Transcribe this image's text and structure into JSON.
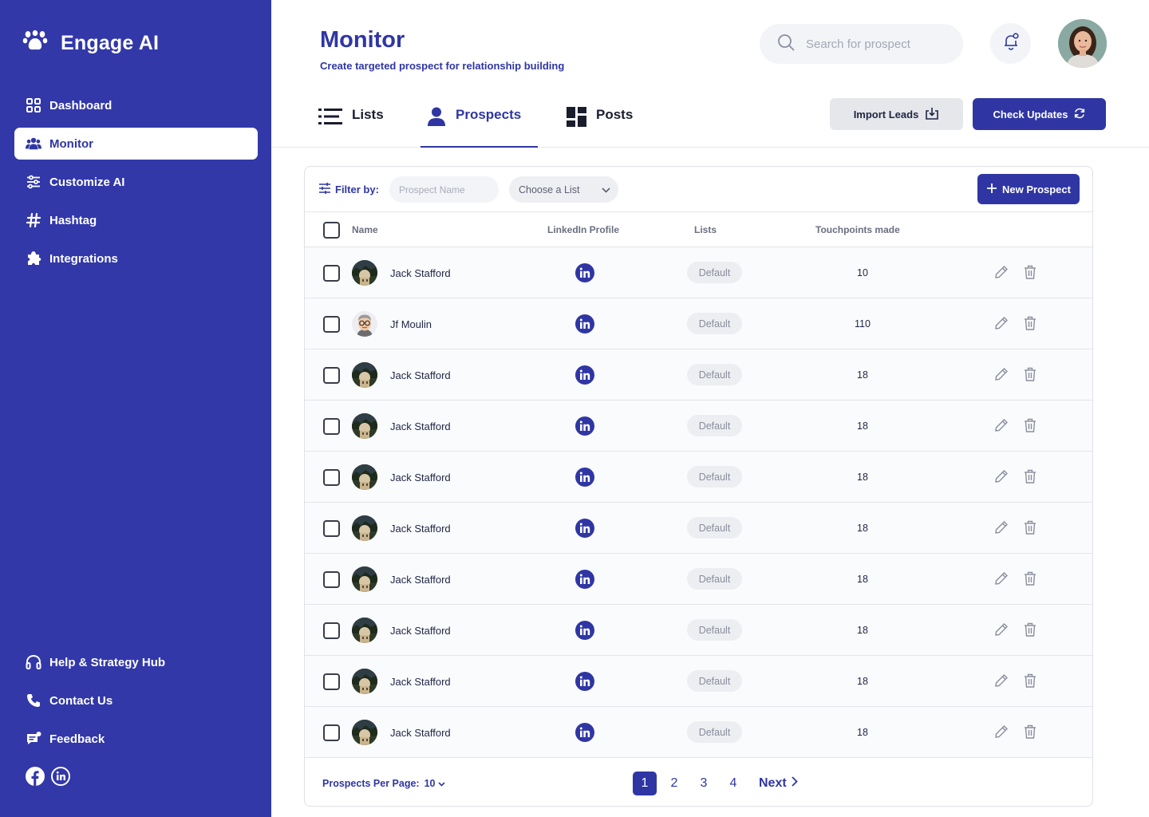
{
  "app": {
    "name": "Engage AI"
  },
  "sidebar": {
    "items": [
      {
        "label": "Dashboard",
        "icon": "grid-icon"
      },
      {
        "label": "Monitor",
        "icon": "users-icon",
        "active": true
      },
      {
        "label": "Customize AI",
        "icon": "sliders-icon"
      },
      {
        "label": "Hashtag",
        "icon": "hashtag-icon"
      },
      {
        "label": "Integrations",
        "icon": "puzzle-icon"
      }
    ],
    "bottom_items": [
      {
        "label": "Help & Strategy Hub",
        "icon": "headphones-icon"
      },
      {
        "label": "Contact Us",
        "icon": "phone-icon"
      },
      {
        "label": "Feedback",
        "icon": "feedback-icon"
      }
    ],
    "socials": [
      "facebook-icon",
      "linkedin-icon"
    ]
  },
  "header": {
    "title": "Monitor",
    "subtitle": "Create targeted prospect for relationship building",
    "search_placeholder": "Search for prospect"
  },
  "tabs": [
    {
      "label": "Lists",
      "icon": "list-icon"
    },
    {
      "label": "Prospects",
      "icon": "person-icon",
      "active": true
    },
    {
      "label": "Posts",
      "icon": "dashboard-icon"
    }
  ],
  "actions": {
    "import_label": "Import Leads",
    "check_label": "Check Updates"
  },
  "filter": {
    "label": "Filter by:",
    "name_placeholder": "Prospect Name",
    "list_placeholder": "Choose a List",
    "new_label": "New Prospect"
  },
  "table": {
    "columns": {
      "name": "Name",
      "linkedin": "LinkedIn Profile",
      "lists": "Lists",
      "touchpoints": "Touchpoints made"
    },
    "rows": [
      {
        "name": "Jack Stafford",
        "list": "Default",
        "touchpoints": "10",
        "avatar": "photo"
      },
      {
        "name": "Jf Moulin",
        "list": "Default",
        "touchpoints": "110",
        "avatar": "cartoon"
      },
      {
        "name": "Jack Stafford",
        "list": "Default",
        "touchpoints": "18",
        "avatar": "photo"
      },
      {
        "name": "Jack Stafford",
        "list": "Default",
        "touchpoints": "18",
        "avatar": "photo"
      },
      {
        "name": "Jack Stafford",
        "list": "Default",
        "touchpoints": "18",
        "avatar": "photo"
      },
      {
        "name": "Jack Stafford",
        "list": "Default",
        "touchpoints": "18",
        "avatar": "photo"
      },
      {
        "name": "Jack Stafford",
        "list": "Default",
        "touchpoints": "18",
        "avatar": "photo"
      },
      {
        "name": "Jack Stafford",
        "list": "Default",
        "touchpoints": "18",
        "avatar": "photo"
      },
      {
        "name": "Jack Stafford",
        "list": "Default",
        "touchpoints": "18",
        "avatar": "photo"
      },
      {
        "name": "Jack Stafford",
        "list": "Default",
        "touchpoints": "18",
        "avatar": "photo"
      }
    ]
  },
  "pagination": {
    "per_page_label": "Prospects Per Page:",
    "per_page_value": "10",
    "pages": [
      "1",
      "2",
      "3",
      "4"
    ],
    "current": "1",
    "next_label": "Next"
  },
  "colors": {
    "primary": "#2f36a3",
    "sidebar": "#3238a8",
    "chip": "#eceef2"
  }
}
